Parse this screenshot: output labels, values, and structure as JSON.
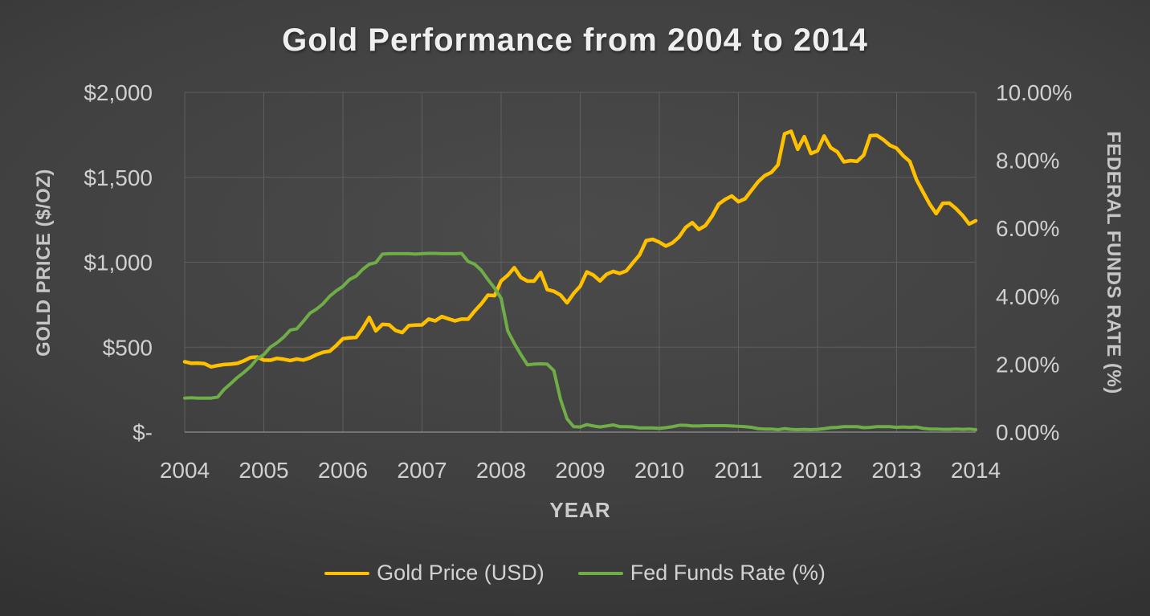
{
  "chart_data": {
    "type": "line",
    "title": "Gold Performance from 2004 to 2014",
    "xlabel": "YEAR",
    "ylabel_left": "GOLD PRICE ($/OZ)",
    "ylabel_right": "FEDERAL FUNDS RATE (%)",
    "x_min": 2004,
    "x_max": 2014,
    "x_ticks": [
      2004,
      2005,
      2006,
      2007,
      2008,
      2009,
      2010,
      2011,
      2012,
      2013,
      2014
    ],
    "x_start_year": 2004,
    "x_step_months": 1,
    "grid": "horizontal+vertical",
    "legend_position": "bottom",
    "y_left": {
      "min": 0,
      "max": 2000,
      "tick_step": 500,
      "tick_labels": [
        "$-",
        "$500",
        "$1,000",
        "$1,500",
        "$2,000"
      ]
    },
    "y_right": {
      "min": 0,
      "max": 10,
      "tick_step": 2,
      "tick_labels": [
        "0.00%",
        "2.00%",
        "4.00%",
        "6.00%",
        "8.00%",
        "10.00%"
      ]
    },
    "series": [
      {
        "name": "Gold Price (USD)",
        "axis": "left",
        "color": "#FFC000",
        "stroke_width": 4.5,
        "values": [
          414,
          405,
          406,
          403,
          384,
          392,
          398,
          400,
          405,
          420,
          439,
          442,
          424,
          423,
          434,
          429,
          421,
          430,
          424,
          437,
          456,
          470,
          476,
          510,
          550,
          555,
          557,
          611,
          675,
          596,
          634,
          632,
          598,
          586,
          627,
          630,
          631,
          665,
          655,
          680,
          667,
          655,
          665,
          665,
          713,
          755,
          806,
          803,
          890,
          923,
          968,
          910,
          889,
          889,
          940,
          839,
          829,
          807,
          761,
          816,
          859,
          943,
          924,
          890,
          929,
          946,
          934,
          949,
          997,
          1043,
          1127,
          1135,
          1118,
          1095,
          1114,
          1149,
          1205,
          1233,
          1193,
          1216,
          1271,
          1342,
          1370,
          1390,
          1356,
          1373,
          1424,
          1474,
          1510,
          1529,
          1573,
          1756,
          1771,
          1665,
          1739,
          1640,
          1656,
          1743,
          1674,
          1650,
          1591,
          1598,
          1594,
          1630,
          1745,
          1747,
          1721,
          1688,
          1671,
          1627,
          1593,
          1487,
          1414,
          1343,
          1286,
          1347,
          1348,
          1316,
          1276,
          1225,
          1244
        ]
      },
      {
        "name": "Fed Funds Rate (%)",
        "axis": "right",
        "color": "#70AD47",
        "stroke_width": 4,
        "values": [
          1.0,
          1.01,
          1.0,
          1.0,
          1.0,
          1.03,
          1.26,
          1.43,
          1.61,
          1.76,
          1.93,
          2.16,
          2.28,
          2.5,
          2.63,
          2.79,
          3.0,
          3.04,
          3.26,
          3.5,
          3.62,
          3.78,
          4.0,
          4.16,
          4.29,
          4.49,
          4.59,
          4.79,
          4.94,
          4.99,
          5.24,
          5.25,
          5.25,
          5.25,
          5.25,
          5.24,
          5.25,
          5.26,
          5.26,
          5.25,
          5.25,
          5.25,
          5.26,
          5.02,
          4.94,
          4.76,
          4.49,
          4.24,
          3.94,
          2.98,
          2.61,
          2.28,
          1.98,
          2.0,
          2.01,
          2.0,
          1.81,
          0.97,
          0.39,
          0.16,
          0.15,
          0.22,
          0.18,
          0.15,
          0.18,
          0.21,
          0.16,
          0.16,
          0.15,
          0.12,
          0.12,
          0.12,
          0.11,
          0.13,
          0.16,
          0.2,
          0.2,
          0.18,
          0.18,
          0.19,
          0.19,
          0.19,
          0.19,
          0.18,
          0.17,
          0.16,
          0.14,
          0.1,
          0.09,
          0.09,
          0.07,
          0.1,
          0.08,
          0.07,
          0.08,
          0.07,
          0.08,
          0.1,
          0.13,
          0.14,
          0.16,
          0.16,
          0.16,
          0.13,
          0.14,
          0.16,
          0.16,
          0.16,
          0.14,
          0.15,
          0.14,
          0.15,
          0.11,
          0.09,
          0.09,
          0.08,
          0.08,
          0.09,
          0.08,
          0.09,
          0.07
        ]
      }
    ]
  },
  "colors": {
    "background_center": "#4b4b4b",
    "background_edge": "#262626",
    "grid": "#5e5e5e",
    "axis_line": "#8f8f8f",
    "tick_text": "#d0d0d0",
    "axis_title_text": "#c6c6c6",
    "title_text": "#efefef",
    "legend_text": "#d2d2d2"
  }
}
